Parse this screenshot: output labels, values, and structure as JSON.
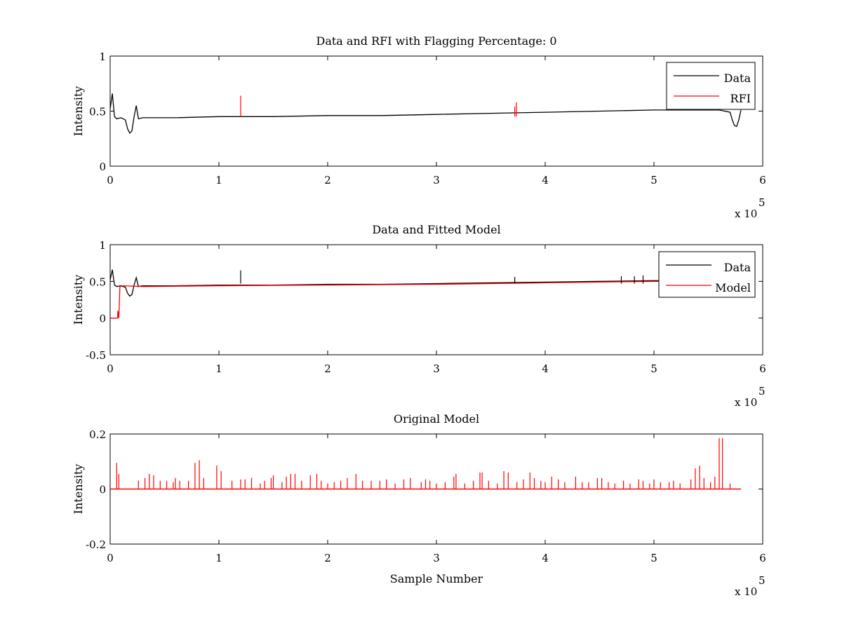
{
  "colors": {
    "data": "#000000",
    "rfi": "#ff0000",
    "model": "#ff0000",
    "frame": "#000000",
    "background": "#ffffff"
  },
  "chart_data": [
    {
      "type": "line",
      "title": "Data and RFI with Flagging Percentage: 0",
      "xlabel": "",
      "ylabel": "Intensity",
      "xlim": [
        0,
        600000
      ],
      "ylim": [
        0,
        1
      ],
      "xticks": [
        "0",
        "1",
        "2",
        "3",
        "4",
        "5",
        "6"
      ],
      "yticks": [
        "0",
        "0.5",
        "1"
      ],
      "x_exponent": "x 10",
      "x_exponent_power": "5",
      "legend": {
        "position": "top-right",
        "entries": [
          "Data",
          "RFI"
        ]
      },
      "series": [
        {
          "name": "Data",
          "color": "#000000",
          "x": [
            0,
            2000,
            4000,
            6000,
            10000,
            14000,
            16000,
            18000,
            20000,
            22000,
            24000,
            26000,
            30000,
            60000,
            100000,
            150000,
            200000,
            250000,
            300000,
            350000,
            400000,
            450000,
            500000,
            540000,
            560000,
            570000,
            572000,
            574000,
            576000,
            578000,
            580000
          ],
          "y": [
            0.52,
            0.66,
            0.45,
            0.43,
            0.44,
            0.42,
            0.34,
            0.3,
            0.32,
            0.45,
            0.55,
            0.43,
            0.44,
            0.44,
            0.45,
            0.45,
            0.46,
            0.46,
            0.47,
            0.48,
            0.49,
            0.5,
            0.51,
            0.51,
            0.51,
            0.49,
            0.42,
            0.37,
            0.36,
            0.42,
            0.51
          ]
        },
        {
          "name": "RFI",
          "color": "#ff0000",
          "spikes": [
            [
              120000,
              0.64
            ],
            [
              372000,
              0.54
            ],
            [
              373500,
              0.58
            ]
          ]
        }
      ]
    },
    {
      "type": "line",
      "title": "Data and Fitted Model",
      "xlabel": "",
      "ylabel": "Intensity",
      "xlim": [
        0,
        600000
      ],
      "ylim": [
        -0.5,
        1
      ],
      "xticks": [
        "0",
        "1",
        "2",
        "3",
        "4",
        "5",
        "6"
      ],
      "yticks": [
        "-0.5",
        "0",
        "0.5",
        "1"
      ],
      "x_exponent": "x 10",
      "x_exponent_power": "5",
      "legend": {
        "position": "top-right",
        "entries": [
          "Data",
          "Model"
        ]
      },
      "series": [
        {
          "name": "Data",
          "color": "#000000",
          "x": [
            0,
            2000,
            4000,
            6000,
            10000,
            14000,
            16000,
            18000,
            20000,
            22000,
            24000,
            26000,
            30000,
            60000,
            100000,
            150000,
            200000,
            250000,
            300000,
            350000,
            400000,
            450000,
            500000,
            520000
          ],
          "y": [
            0.52,
            0.66,
            0.45,
            0.43,
            0.44,
            0.42,
            0.34,
            0.3,
            0.32,
            0.45,
            0.55,
            0.43,
            0.44,
            0.44,
            0.45,
            0.45,
            0.46,
            0.46,
            0.47,
            0.48,
            0.49,
            0.5,
            0.51,
            0.51
          ]
        },
        {
          "name": "Model",
          "color": "#ff0000",
          "x": [
            0,
            7000,
            7000,
            8000,
            9000,
            10000,
            12000,
            30000,
            100000,
            200000,
            300000,
            400000,
            500000,
            520000
          ],
          "y": [
            0,
            0,
            0.1,
            0.0,
            0.44,
            0.43,
            0.44,
            0.43,
            0.44,
            0.45,
            0.46,
            0.48,
            0.5,
            0.5
          ]
        }
      ],
      "data_spikes": [
        [
          120000,
          0.65
        ],
        [
          372000,
          0.56
        ],
        [
          470000,
          0.57
        ],
        [
          482000,
          0.57
        ],
        [
          490000,
          0.58
        ]
      ]
    },
    {
      "type": "line",
      "title": "Original Model",
      "xlabel": "Sample Number",
      "ylabel": "Intensity",
      "xlim": [
        0,
        600000
      ],
      "ylim": [
        -0.2,
        0.2
      ],
      "xticks": [
        "0",
        "1",
        "2",
        "3",
        "4",
        "5",
        "6"
      ],
      "yticks": [
        "-0.2",
        "0",
        "0.2"
      ],
      "x_exponent": "x 10",
      "x_exponent_power": "5",
      "series": [
        {
          "name": "",
          "color": "#ff0000",
          "baseline_range": [
            0,
            580000
          ],
          "spikes": [
            [
              6000,
              0.095
            ],
            [
              8000,
              0.055
            ],
            [
              26000,
              0.03
            ],
            [
              32000,
              0.04
            ],
            [
              36000,
              0.055
            ],
            [
              40000,
              0.05
            ],
            [
              46000,
              0.03
            ],
            [
              52000,
              0.03
            ],
            [
              58000,
              0.025
            ],
            [
              60000,
              0.04
            ],
            [
              64000,
              0.03
            ],
            [
              72000,
              0.03
            ],
            [
              78000,
              0.095
            ],
            [
              82000,
              0.105
            ],
            [
              86000,
              0.04
            ],
            [
              98000,
              0.085
            ],
            [
              102000,
              0.065
            ],
            [
              112000,
              0.03
            ],
            [
              120000,
              0.035
            ],
            [
              124000,
              0.035
            ],
            [
              130000,
              0.04
            ],
            [
              138000,
              0.02
            ],
            [
              142000,
              0.03
            ],
            [
              148000,
              0.04
            ],
            [
              150000,
              0.05
            ],
            [
              158000,
              0.025
            ],
            [
              162000,
              0.045
            ],
            [
              166000,
              0.055
            ],
            [
              170000,
              0.055
            ],
            [
              176000,
              0.03
            ],
            [
              184000,
              0.05
            ],
            [
              190000,
              0.055
            ],
            [
              194000,
              0.03
            ],
            [
              200000,
              0.02
            ],
            [
              206000,
              0.025
            ],
            [
              212000,
              0.03
            ],
            [
              218000,
              0.04
            ],
            [
              226000,
              0.055
            ],
            [
              232000,
              0.03
            ],
            [
              240000,
              0.03
            ],
            [
              248000,
              0.03
            ],
            [
              254000,
              0.035
            ],
            [
              262000,
              0.02
            ],
            [
              270000,
              0.035
            ],
            [
              276000,
              0.04
            ],
            [
              286000,
              0.025
            ],
            [
              290000,
              0.035
            ],
            [
              294000,
              0.03
            ],
            [
              300000,
              0.02
            ],
            [
              308000,
              0.025
            ],
            [
              316000,
              0.045
            ],
            [
              318000,
              0.055
            ],
            [
              326000,
              0.02
            ],
            [
              334000,
              0.03
            ],
            [
              340000,
              0.06
            ],
            [
              342000,
              0.06
            ],
            [
              348000,
              0.03
            ],
            [
              356000,
              0.02
            ],
            [
              362000,
              0.065
            ],
            [
              366000,
              0.06
            ],
            [
              374000,
              0.025
            ],
            [
              380000,
              0.035
            ],
            [
              386000,
              0.06
            ],
            [
              390000,
              0.04
            ],
            [
              396000,
              0.03
            ],
            [
              400000,
              0.025
            ],
            [
              406000,
              0.045
            ],
            [
              412000,
              0.035
            ],
            [
              418000,
              0.025
            ],
            [
              428000,
              0.045
            ],
            [
              434000,
              0.025
            ],
            [
              440000,
              0.025
            ],
            [
              448000,
              0.04
            ],
            [
              452000,
              0.04
            ],
            [
              458000,
              0.025
            ],
            [
              464000,
              0.02
            ],
            [
              472000,
              0.03
            ],
            [
              478000,
              0.02
            ],
            [
              486000,
              0.035
            ],
            [
              490000,
              0.03
            ],
            [
              496000,
              0.02
            ],
            [
              500000,
              0.035
            ],
            [
              506000,
              0.025
            ],
            [
              514000,
              0.025
            ],
            [
              518000,
              0.03
            ],
            [
              524000,
              0.02
            ],
            [
              534000,
              0.035
            ],
            [
              538000,
              0.075
            ],
            [
              542000,
              0.085
            ],
            [
              546000,
              0.04
            ],
            [
              552000,
              0.025
            ],
            [
              556000,
              0.045
            ],
            [
              560000,
              0.185
            ],
            [
              563000,
              0.185
            ],
            [
              570000,
              0.02
            ]
          ]
        }
      ]
    }
  ]
}
